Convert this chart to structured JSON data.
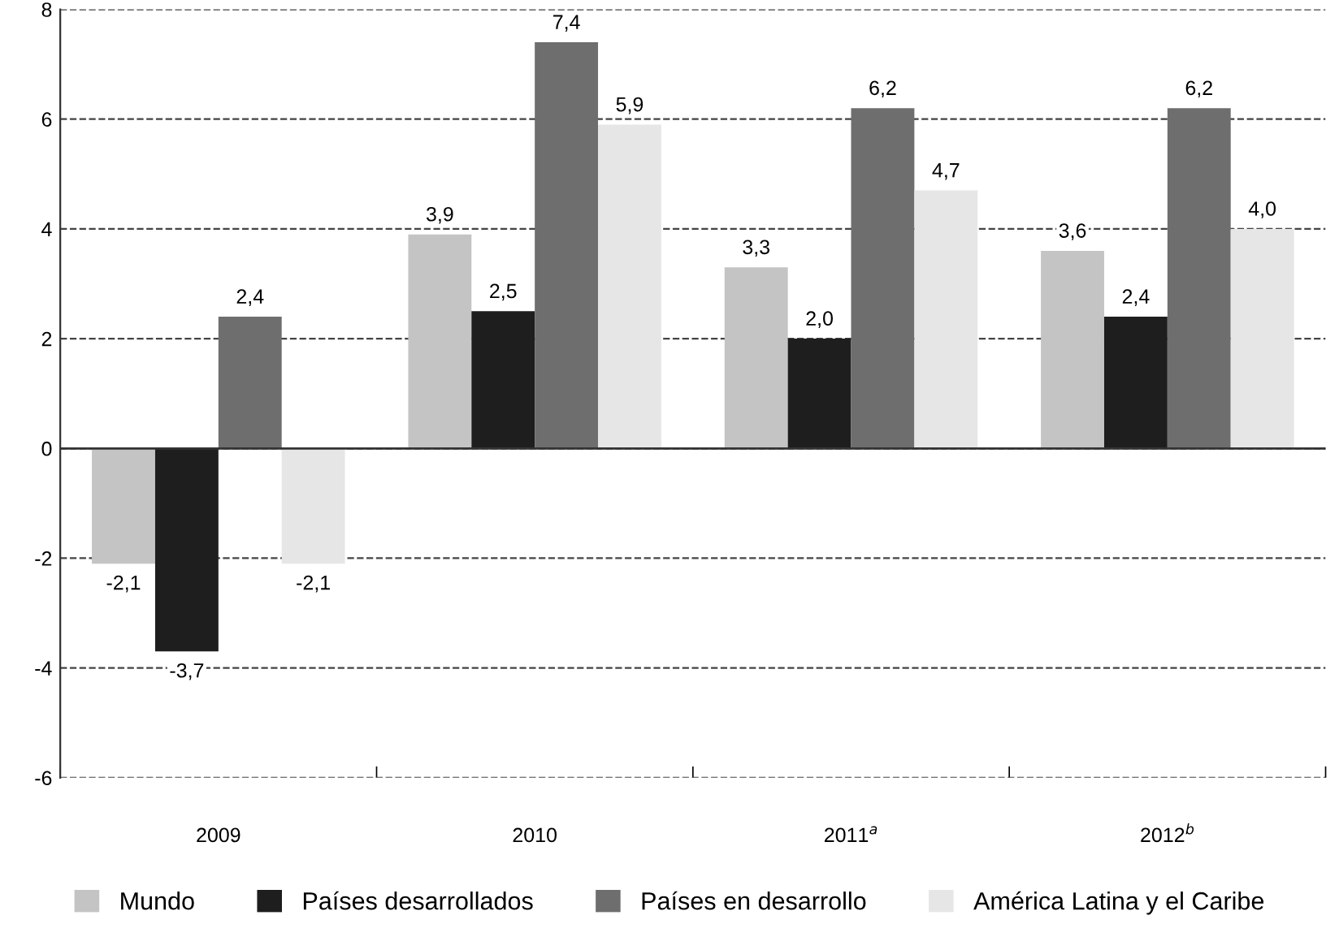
{
  "chart_data": {
    "type": "bar",
    "categories": [
      "2009",
      "2010",
      "2011$^{a}$",
      "2012$^{b}$"
    ],
    "series": [
      {
        "name": "Mundo",
        "color": "#c4c4c4",
        "values": [
          -2.1,
          3.9,
          3.3,
          3.6
        ],
        "value_labels": [
          "-2,1",
          "3,9",
          "3,3",
          "3,6"
        ]
      },
      {
        "name": "Países desarrollados",
        "color": "#1e1e1e",
        "values": [
          -3.7,
          2.5,
          2.0,
          2.4
        ],
        "value_labels": [
          "-3,7",
          "2,5",
          "2,0",
          "2,4"
        ]
      },
      {
        "name": "Países en desarrollo",
        "color": "#6e6e6e",
        "values": [
          2.4,
          7.4,
          6.2,
          6.2
        ],
        "value_labels": [
          "2,4",
          "7,4",
          "6,2",
          "6,2"
        ]
      },
      {
        "name": "América Latina y el Caribe",
        "color": "#e6e6e6",
        "values": [
          -2.1,
          5.9,
          4.7,
          4.0
        ],
        "value_labels": [
          "-2,1",
          "5,9",
          "4,7",
          "4,0"
        ]
      }
    ],
    "ylim": [
      -6,
      8
    ],
    "yticks": [
      -6,
      -4,
      -2,
      0,
      2,
      4,
      6,
      8
    ],
    "grid": "y",
    "line_style": "dashed",
    "legend": "bottom"
  }
}
